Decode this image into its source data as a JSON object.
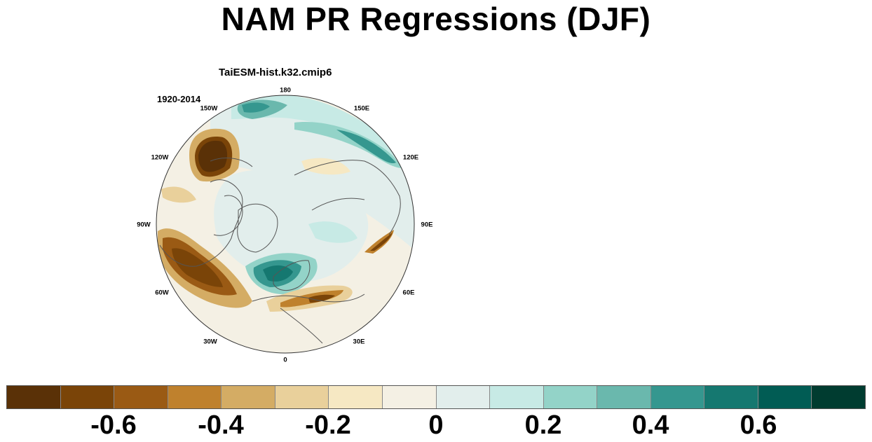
{
  "title": "NAM PR Regressions (DJF)",
  "panel": {
    "model": "TaiESM-hist.k32.cmip6",
    "period": "1920-2014",
    "projection": "polar stereographic, North Pole",
    "lon_labels": [
      "180",
      "150E",
      "120E",
      "90E",
      "60E",
      "30E",
      "0",
      "30W",
      "60W",
      "90W",
      "120W",
      "150W"
    ]
  },
  "colorbar": {
    "colors": [
      "#5a3107",
      "#7a4408",
      "#9a5a14",
      "#bf812d",
      "#d4ac64",
      "#e9d09b",
      "#f6e8c3",
      "#f4f0e4",
      "#e2eeec",
      "#c7eae5",
      "#93d3c8",
      "#6ab8ad",
      "#35978f",
      "#157870",
      "#015c54",
      "#003c30"
    ],
    "tick_labels": [
      "-0.6",
      "-0.4",
      "-0.2",
      "0",
      "0.2",
      "0.4",
      "0.6"
    ]
  },
  "colors": {
    "coastline": "#555555",
    "map_background": "#f4f0e4"
  }
}
